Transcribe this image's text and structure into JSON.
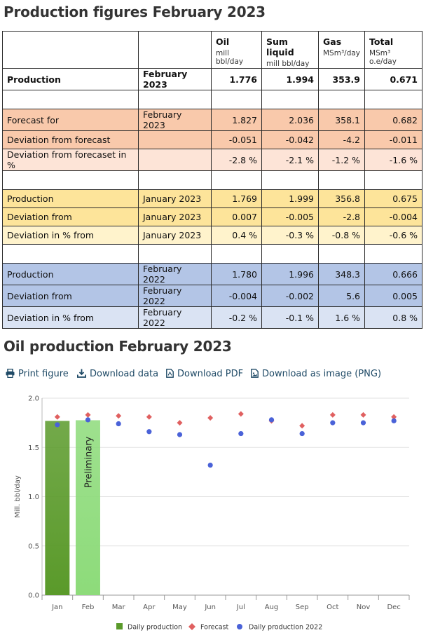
{
  "page": {
    "title": "Production figures February 2023",
    "chart_title": "Oil production February 2023"
  },
  "table": {
    "headers": [
      {
        "main": "",
        "unit": ""
      },
      {
        "main": "",
        "unit": ""
      },
      {
        "main": "Oil",
        "unit": "mill bbl/day"
      },
      {
        "main": "Sum liquid",
        "unit": "mill bbl/day"
      },
      {
        "main": "Gas",
        "unit": "MSm³/day"
      },
      {
        "main": "Total",
        "unit": "MSm³ o.e/day"
      }
    ],
    "rows": [
      {
        "type": "data",
        "style": "bold",
        "cells": [
          "Production",
          "February 2023",
          "1.776",
          "1.994",
          "353.9",
          "0.671"
        ]
      },
      {
        "type": "blank"
      },
      {
        "type": "data",
        "style": "bg-fc1",
        "cells": [
          "Forecast for",
          "February 2023",
          "1.827",
          "2.036",
          "358.1",
          "0.682"
        ]
      },
      {
        "type": "data",
        "style": "bg-fc1",
        "cells": [
          "Deviation from forecast",
          "",
          "-0.051",
          "-0.042",
          "-4.2",
          "-0.011"
        ]
      },
      {
        "type": "data",
        "style": "bg-fc2",
        "cells": [
          "Deviation from forecaset in %",
          "",
          "-2.8 %",
          "-2.1 %",
          "-1.2 %",
          "-1.6 %"
        ]
      },
      {
        "type": "blank"
      },
      {
        "type": "data",
        "style": "bg-jan1",
        "cells": [
          "Production",
          "January 2023",
          "1.769",
          "1.999",
          "356.8",
          "0.675"
        ]
      },
      {
        "type": "data",
        "style": "bg-jan1",
        "cells": [
          "Deviation from",
          "January 2023",
          "0.007",
          "-0.005",
          "-2.8",
          "-0.004"
        ]
      },
      {
        "type": "data",
        "style": "bg-jan2",
        "cells": [
          "Deviation in % from",
          "January 2023",
          "0.4 %",
          "-0.3 %",
          "-0.8 %",
          "-0.6 %"
        ]
      },
      {
        "type": "blank"
      },
      {
        "type": "data",
        "style": "bg-feb1",
        "cells": [
          "Production",
          "February 2022",
          "1.780",
          "1.996",
          "348.3",
          "0.666"
        ]
      },
      {
        "type": "data",
        "style": "bg-feb1",
        "cells": [
          "Deviation from",
          "February 2022",
          "-0.004",
          "-0.002",
          "5.6",
          "0.005"
        ]
      },
      {
        "type": "data",
        "style": "bg-feb2",
        "cells": [
          "Deviation in % from",
          "February 2022",
          "-0.2 %",
          "-0.1 %",
          "1.6 %",
          "0.8 %"
        ]
      }
    ]
  },
  "toolbar": {
    "print": "Print figure",
    "download_data": "Download data",
    "download_pdf": "Download PDF",
    "download_png": "Download as image (PNG)"
  },
  "chart_data": {
    "type": "bar",
    "title": "Oil production February 2023",
    "ylabel": "Mill. bbl/day",
    "xlabel": "",
    "ylim": [
      0,
      2.0
    ],
    "yticks": [
      "0.0",
      "0.5",
      "1.0",
      "1.5",
      "2.0"
    ],
    "categories": [
      "Jan",
      "Feb",
      "Mar",
      "Apr",
      "May",
      "Jun",
      "Jul",
      "Aug",
      "Sep",
      "Oct",
      "Nov",
      "Dec"
    ],
    "series": [
      {
        "name": "Daily production",
        "type": "bar",
        "color": "#5a9a2a",
        "values": [
          1.769,
          1.776,
          null,
          null,
          null,
          null,
          null,
          null,
          null,
          null,
          null,
          null
        ]
      },
      {
        "name": "Forecast",
        "type": "scatter",
        "marker": "diamond",
        "color": "#e06060",
        "values": [
          1.81,
          1.83,
          1.82,
          1.81,
          1.75,
          1.8,
          1.84,
          1.77,
          1.72,
          1.83,
          1.83,
          1.81
        ]
      },
      {
        "name": "Daily production 2022",
        "type": "scatter",
        "marker": "circle",
        "color": "#4a62d8",
        "values": [
          1.73,
          1.78,
          1.74,
          1.66,
          1.63,
          1.32,
          1.64,
          1.78,
          1.64,
          1.75,
          1.75,
          1.77
        ]
      }
    ],
    "bar_annotations": [
      {
        "category": "Feb",
        "text": "Preliminary"
      }
    ],
    "bar_colors": {
      "Jan": "#5a9a2a",
      "Feb": "#8ddb7a"
    },
    "grid": "horizontal",
    "legend_position": "bottom"
  }
}
